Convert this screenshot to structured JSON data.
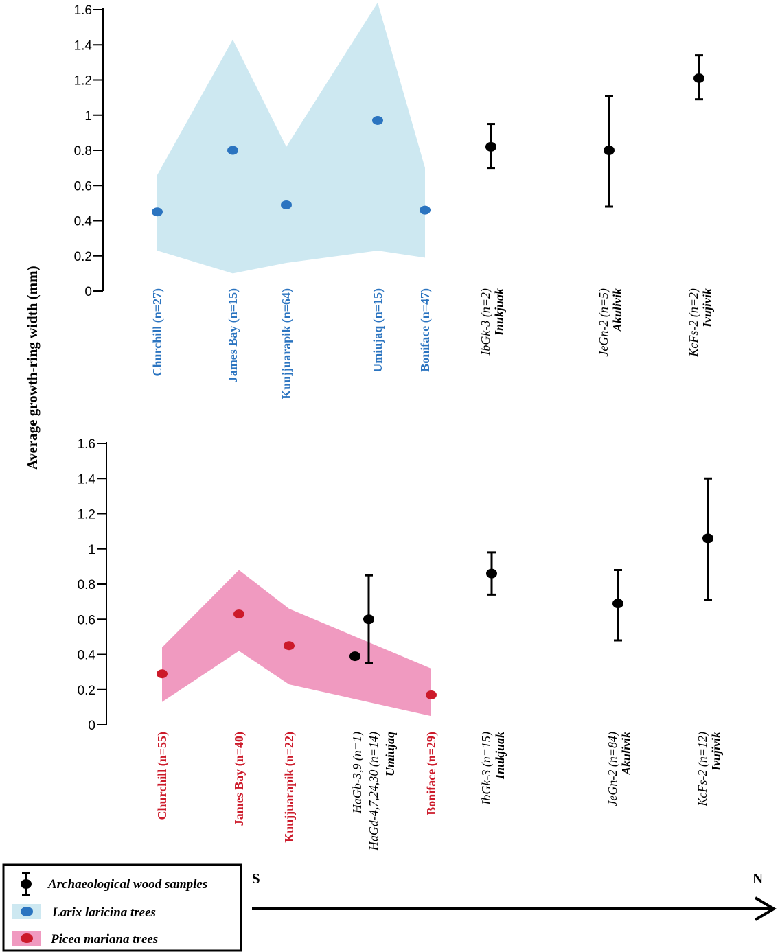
{
  "y_axis_label": "Average growth-ring width (mm)",
  "colors": {
    "larix_band": "#cde8f1",
    "larix_point": "#2b74c0",
    "picea_band": "#f09ac0",
    "picea_point": "#cc1a2a",
    "picea_label": "#cc1a2a",
    "larix_label": "#2b74c0",
    "archaeo": "#000000"
  },
  "legend": {
    "archaeological": "Archaeological wood samples",
    "larix": "Larix laricina trees",
    "picea": "Picea mariana trees"
  },
  "direction": {
    "south": "S",
    "north": "N"
  },
  "chart_data": [
    {
      "type": "scatter",
      "panel": "top",
      "ylim": [
        0,
        1.6
      ],
      "yticks": [
        "0",
        "0.2",
        "0.4",
        "0.6",
        "0.8",
        "1",
        "1.2",
        "1.4",
        "1.6"
      ],
      "band": {
        "series": "Larix laricina trees",
        "x": [
          1,
          2,
          3,
          4,
          5
        ],
        "upper": [
          0.66,
          1.43,
          0.82,
          1.64,
          0.7
        ],
        "lower": [
          0.23,
          0.1,
          0.16,
          0.23,
          0.19
        ]
      },
      "tree_points": [
        {
          "x": 1,
          "y": 0.45,
          "label": "Churchill (n=27)"
        },
        {
          "x": 2,
          "y": 0.8,
          "label": "James Bay (n=15)"
        },
        {
          "x": 3,
          "y": 0.49,
          "label": "Kuujjuarapik (n=64)"
        },
        {
          "x": 4,
          "y": 0.97,
          "label": "Umiujaq (n=15)"
        },
        {
          "x": 5,
          "y": 0.46,
          "label": "Boniface (n=47)"
        }
      ],
      "archaeo_points": [
        {
          "x": 6,
          "y": 0.82,
          "low": 0.7,
          "high": 0.95,
          "code": "IbGk-3 (n=2)",
          "place": "Inukjuak"
        },
        {
          "x": 7,
          "y": 0.8,
          "low": 0.48,
          "high": 1.11,
          "code": "JeGn-2 (n=5)",
          "place": "Akulivik"
        },
        {
          "x": 8,
          "y": 1.21,
          "low": 1.09,
          "high": 1.34,
          "code": "KcFs-2 (n=2)",
          "place": "Ivujivik"
        }
      ]
    },
    {
      "type": "scatter",
      "panel": "bottom",
      "ylim": [
        0,
        1.6
      ],
      "yticks": [
        "0",
        "0.2",
        "0.4",
        "0.6",
        "0.8",
        "1",
        "1.2",
        "1.4",
        "1.6"
      ],
      "band": {
        "series": "Picea mariana trees",
        "x": [
          1,
          2,
          3,
          5
        ],
        "upper": [
          0.44,
          0.88,
          0.66,
          0.32
        ],
        "lower": [
          0.13,
          0.42,
          0.23,
          0.05
        ]
      },
      "tree_points": [
        {
          "x": 1,
          "y": 0.29,
          "label": "Churchill (n=55)"
        },
        {
          "x": 2,
          "y": 0.63,
          "label": "James Bay (n=40)"
        },
        {
          "x": 3,
          "y": 0.45,
          "label": "Kuujjuarapik (n=22)"
        },
        {
          "x": 5,
          "y": 0.17,
          "label": "Boniface (n=29)"
        }
      ],
      "umiujaq_label": {
        "line1": "HaGb-3,9 (n=1)",
        "line2": "HaGd-4,7,24,30 (n=14)",
        "place": "Umiujaq"
      },
      "archaeo_points": [
        {
          "x": 4.0,
          "y": 0.39,
          "low": null,
          "high": null
        },
        {
          "x": 4.4,
          "y": 0.6,
          "low": 0.35,
          "high": 0.85
        },
        {
          "x": 6,
          "y": 0.86,
          "low": 0.74,
          "high": 0.98,
          "code": "IbGk-3 (n=15)",
          "place": "Inukjuak"
        },
        {
          "x": 7,
          "y": 0.69,
          "low": 0.48,
          "high": 0.88,
          "code": "JeGn-2 (n=84)",
          "place": "Akulivik"
        },
        {
          "x": 8,
          "y": 1.06,
          "low": 0.71,
          "high": 1.4,
          "code": "KcFs-2 (n=12)",
          "place": "Ivujivik"
        }
      ]
    }
  ]
}
